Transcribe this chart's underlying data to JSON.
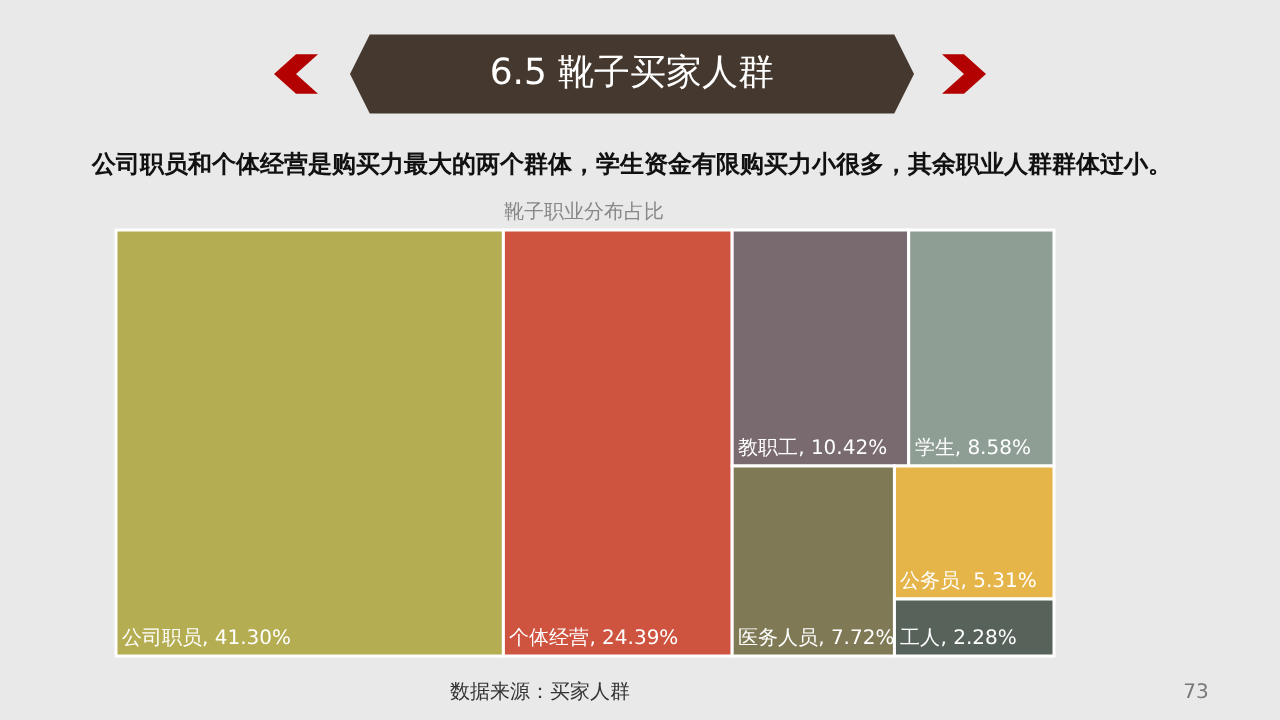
{
  "chart_data": {
    "type": "other",
    "title": "6.5 靴子买家人群",
    "subtitle": "公司职员和个体经营是购买力最大的两个群体，学生资金有限购买力小很多，其余职业人群群体过小。",
    "categories": [
      "公司职员",
      "个体经营",
      "教职工",
      "学生",
      "医务人员",
      "公务员",
      "工人"
    ],
    "values": [
      41.3,
      24.39,
      10.42,
      8.58,
      7.72,
      5.31,
      2.28
    ],
    "value_labels": [
      ", 41.30%",
      ", 24.39%",
      ", 10.42%",
      ", 8.58%",
      ", 7.72%",
      ", 5.31%",
      ", 2.28%"
    ],
    "colors": [
      "#b5ad52",
      "#cf5440",
      "#786a6e",
      "#8e9e94",
      "#7f7a55",
      "#e6b54a",
      "#56625a"
    ],
    "annotations": [
      "靴子职业分布占比",
      "数据来源：买家人群",
      "73"
    ]
  }
}
